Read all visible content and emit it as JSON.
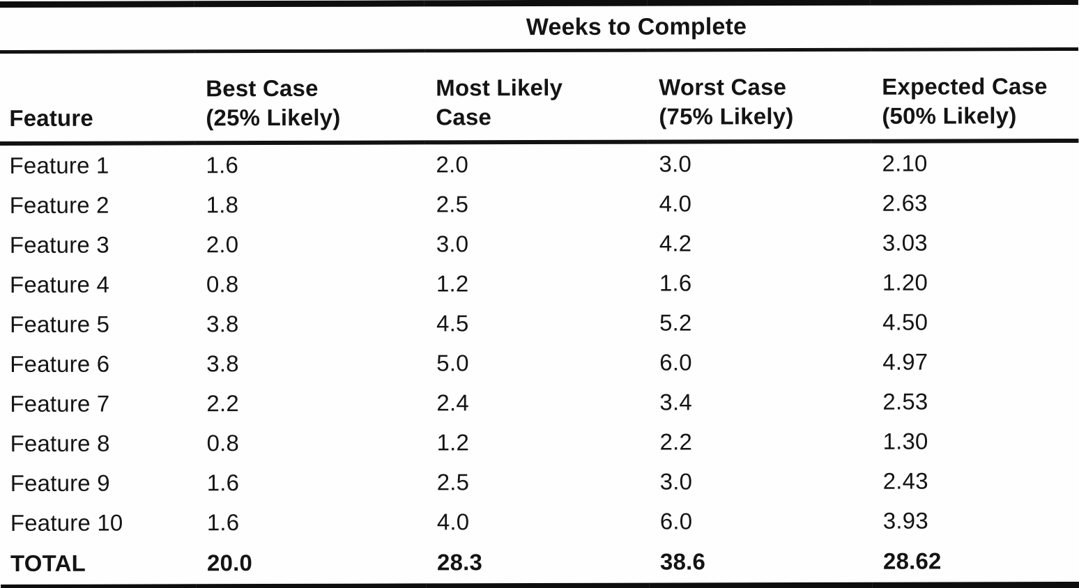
{
  "table": {
    "spanner_header": "Weeks to Complete",
    "columns": [
      {
        "label": "Feature",
        "sub": ""
      },
      {
        "label": "Best Case",
        "sub": "(25% Likely)"
      },
      {
        "label": "Most Likely",
        "sub": "Case"
      },
      {
        "label": "Worst Case",
        "sub": "(75% Likely)"
      },
      {
        "label": "Expected Case",
        "sub": "(50% Likely)"
      }
    ],
    "rows": [
      {
        "feature": "Feature 1",
        "best": "1.6",
        "likely": "2.0",
        "worst": "3.0",
        "expected": "2.10"
      },
      {
        "feature": "Feature 2",
        "best": "1.8",
        "likely": "2.5",
        "worst": "4.0",
        "expected": "2.63"
      },
      {
        "feature": "Feature 3",
        "best": "2.0",
        "likely": "3.0",
        "worst": "4.2",
        "expected": "3.03"
      },
      {
        "feature": "Feature 4",
        "best": "0.8",
        "likely": "1.2",
        "worst": "1.6",
        "expected": "1.20"
      },
      {
        "feature": "Feature 5",
        "best": "3.8",
        "likely": "4.5",
        "worst": "5.2",
        "expected": "4.50"
      },
      {
        "feature": "Feature 6",
        "best": "3.8",
        "likely": "5.0",
        "worst": "6.0",
        "expected": "4.97"
      },
      {
        "feature": "Feature 7",
        "best": "2.2",
        "likely": "2.4",
        "worst": "3.4",
        "expected": "2.53"
      },
      {
        "feature": "Feature 8",
        "best": "0.8",
        "likely": "1.2",
        "worst": "2.2",
        "expected": "1.30"
      },
      {
        "feature": "Feature 9",
        "best": "1.6",
        "likely": "2.5",
        "worst": "3.0",
        "expected": "2.43"
      },
      {
        "feature": "Feature 10",
        "best": "1.6",
        "likely": "4.0",
        "worst": "6.0",
        "expected": "3.93"
      }
    ],
    "total": {
      "feature": "TOTAL",
      "best": "20.0",
      "likely": "28.3",
      "worst": "38.6",
      "expected": "28.62"
    }
  }
}
